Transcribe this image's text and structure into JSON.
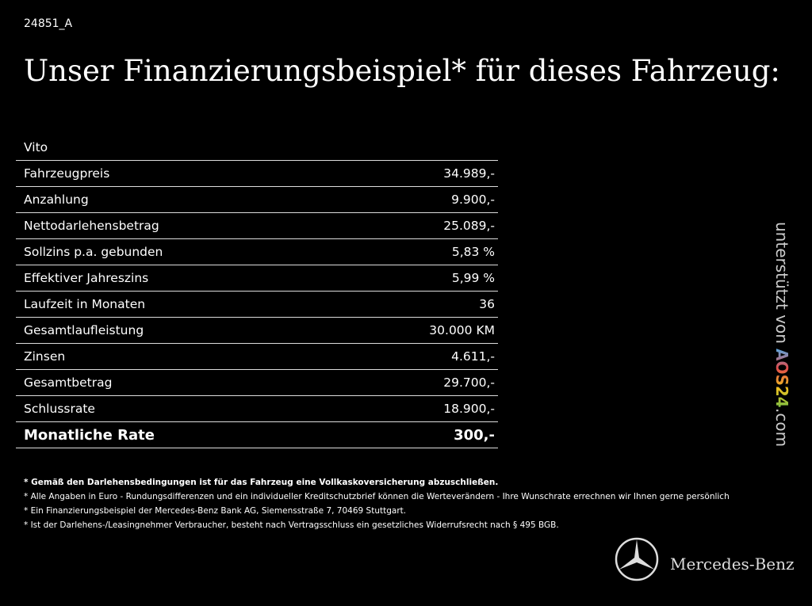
{
  "header": {
    "id": "24851_A",
    "title": "Unser Finanzierungsbeispiel* für dieses Fahrzeug:"
  },
  "table": {
    "model": "Vito",
    "rows": [
      [
        "Fahrzeugpreis",
        "34.989,-"
      ],
      [
        "Anzahlung",
        "9.900,-"
      ],
      [
        "Nettodarlehensbetrag",
        "25.089,-"
      ],
      [
        "Sollzins p.a. gebunden",
        "5,83 %"
      ],
      [
        "Effektiver Jahreszins",
        "5,99 %"
      ],
      [
        "Laufzeit in Monaten",
        "36"
      ],
      [
        "Gesamtlaufleistung",
        "30.000 KM"
      ],
      [
        "Zinsen",
        "4.611,-"
      ],
      [
        "Gesamtbetrag",
        "29.700,-"
      ],
      [
        "Schlussrate",
        "18.900,-"
      ]
    ],
    "total": [
      "Monatliche Rate",
      "300,-"
    ]
  },
  "footnotes": [
    "* Gemäß den Darlehensbedingungen ist für das Fahrzeug eine Vollkaskoversicherung abzuschließen.",
    "* Alle Angaben in Euro - Rundungsdifferenzen und ein individueller Kreditschutzbrief können die Werteverändern - Ihre Wunschrate errechnen wir Ihnen gerne persönlich",
    "* Ein Finanzierungsbeispiel der Mercedes-Benz Bank AG, Siemensstraße 7, 70469 Stuttgart.",
    "* Ist der Darlehens-/Leasingnehmer Verbraucher, besteht nach Vertragsschluss ein gesetzliches Widerrufsrecht nach § 495 BGB."
  ],
  "side": {
    "prefix": "unterstützt von",
    "brand": "AOS24",
    "suffix": ".com"
  },
  "brand": "Mercedes-Benz"
}
